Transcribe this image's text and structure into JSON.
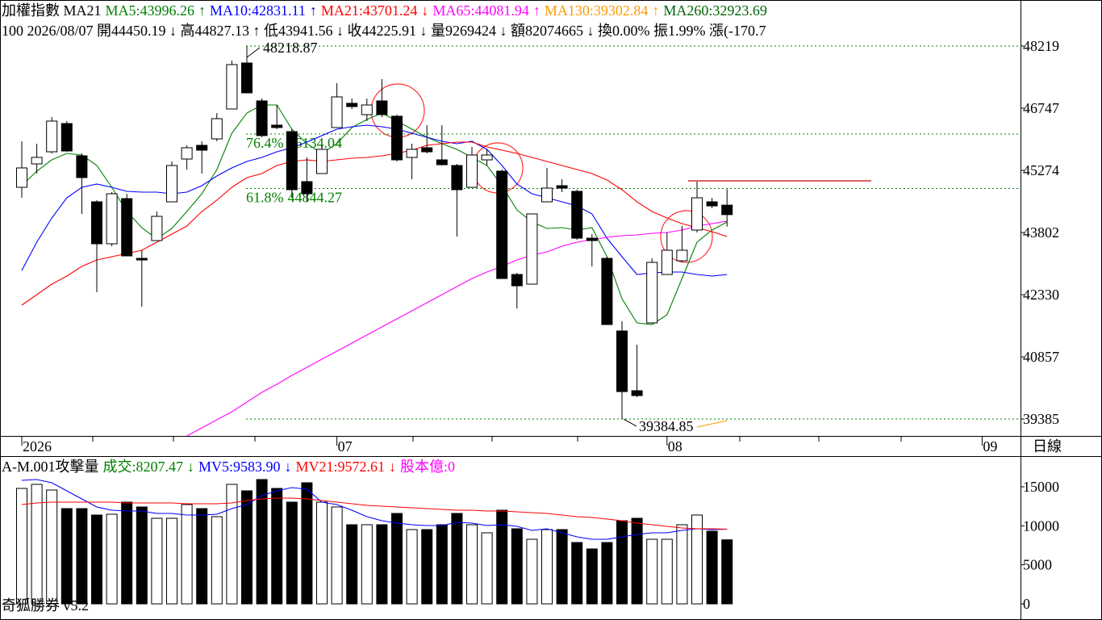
{
  "chart_data": [
    {
      "type": "candlestick",
      "header": [
        [
          {
            "text": "加權指數 MA21",
            "color": "#000000"
          },
          {
            "text": "MA5:43996.26",
            "color": "#008000"
          },
          {
            "text": "↑",
            "color": "#008000"
          },
          {
            "text": "MA10:42831.11",
            "color": "#0000ff"
          },
          {
            "text": "↑",
            "color": "#0000ff"
          },
          {
            "text": "MA21:43701.24",
            "color": "#ff0000"
          },
          {
            "text": "↓",
            "color": "#ff0000"
          },
          {
            "text": "MA65:44081.94",
            "color": "#ff00ff"
          },
          {
            "text": "↑",
            "color": "#ff00ff"
          },
          {
            "text": "MA130:39302.84",
            "color": "#ff9900"
          },
          {
            "text": "↑",
            "color": "#ff9900"
          },
          {
            "text": "MA260:32923.69",
            "color": "#006400"
          }
        ],
        [
          {
            "text": "100 2026/08/07 開44450.19 ↓ 高44827.13 ↑ 低43941.56 ↓ 收44225.91 ↓ 量9269424 ↓ 額82074665 ↓ 換0.00% 振1.99% 漲(-170.7",
            "color": "#000000"
          }
        ]
      ],
      "open": [
        44873,
        45427,
        45714,
        46383,
        45619,
        44529,
        43535,
        44605,
        43190,
        43611,
        44529,
        45542,
        45867,
        46020,
        46728,
        47817,
        46919,
        46345,
        46192,
        45007,
        45198,
        46288,
        46862,
        46594,
        46919,
        46556,
        45580,
        45810,
        45523,
        45389,
        44873,
        45523,
        45255,
        42808,
        42579,
        44529,
        44911,
        44777,
        43668,
        43190,
        41470,
        40055,
        41661,
        42808,
        43133,
        43860,
        44529,
        44450.19
      ],
      "high": [
        45963,
        45906,
        46536,
        46441,
        45676,
        44567,
        44758,
        44720,
        43382,
        44300,
        45485,
        45867,
        45963,
        46632,
        47875,
        48218.87,
        46976,
        46823,
        46250,
        45580,
        45867,
        47339,
        46976,
        46976,
        47435,
        46594,
        45906,
        46345,
        46345,
        45427,
        45829,
        45772,
        45294,
        42846,
        44242,
        45332,
        45064,
        44816,
        43764,
        43229,
        41699,
        41144,
        43190,
        43802,
        43955,
        45007,
        44624,
        44827.13
      ],
      "low": [
        44625,
        45198,
        45676,
        45714,
        44242,
        42387,
        43477,
        43248,
        42043,
        43611,
        44529,
        45294,
        45198,
        45963,
        46728,
        47110,
        46058,
        46250,
        44624,
        44529,
        45198,
        46288,
        46728,
        46441,
        46536,
        45485,
        45064,
        45676,
        45389,
        43707,
        44873,
        45389,
        42712,
        42005,
        42579,
        44529,
        44758,
        43630,
        42999,
        41623,
        39384.85,
        39902,
        41661,
        42808,
        43095,
        43802,
        44376,
        43941.56
      ],
      "close": [
        45332,
        45581,
        46441,
        45733,
        45103,
        43535,
        44720,
        43248,
        43152,
        44185,
        45389,
        45810,
        45752,
        46498,
        47779,
        47110,
        46097,
        46288,
        44816,
        44720,
        45772,
        47014,
        46785,
        46823,
        46594,
        45523,
        45772,
        45714,
        45408,
        44816,
        45638,
        45638,
        42712,
        42540,
        44242,
        44854,
        44854,
        43668,
        43611,
        41623,
        40035,
        39940,
        43095,
        43382,
        43382,
        44624,
        44433,
        44225.91
      ],
      "up_color": "#ffffff",
      "down_color": "#000000",
      "series": [
        {
          "color": "#008000",
          "values": [
            44911,
            45256,
            45523,
            45676,
            45638,
            45389,
            44873,
            44300,
            43917,
            43649,
            43898,
            44300,
            44720,
            45294,
            46154,
            46632,
            46823,
            46823,
            46250,
            45906,
            45676,
            45906,
            46288,
            46479,
            46632,
            46441,
            46250,
            46059,
            45906,
            45772,
            45581,
            45389,
            44911,
            44338,
            44051,
            43898,
            43917,
            43860,
            43917,
            43229,
            42235,
            41661,
            41623,
            41852,
            42713,
            43573,
            43860,
            44051
          ]
        },
        {
          "color": "#0000ff",
          "values": [
            42904,
            43573,
            44147,
            44625,
            44873,
            44950,
            44873,
            44778,
            44758,
            44758,
            44720,
            44758,
            44911,
            45141,
            45332,
            45485,
            45581,
            45714,
            45810,
            45944,
            46097,
            46250,
            46307,
            46345,
            46307,
            46250,
            46154,
            46059,
            45963,
            45906,
            45963,
            45772,
            45389,
            44950,
            44720,
            44625,
            44529,
            44433,
            44242,
            43669,
            43229,
            42808,
            42846,
            42866,
            42866,
            42808,
            42770,
            42808
          ]
        },
        {
          "color": "#ff0000",
          "values": [
            42082,
            42330,
            42579,
            42770,
            42999,
            43152,
            43229,
            43305,
            43382,
            43573,
            43764,
            43955,
            44300,
            44567,
            44873,
            45103,
            45198,
            45389,
            45485,
            45523,
            45485,
            45523,
            45561,
            45581,
            45619,
            45676,
            45753,
            45867,
            45906,
            45944,
            45944,
            45829,
            45753,
            45676,
            45581,
            45485,
            45389,
            45294,
            45198,
            45045,
            44816,
            44529,
            44300,
            44147,
            44013,
            43917,
            43822,
            43707
          ]
        },
        {
          "color": "#ff00ff",
          "values": [
            null,
            null,
            null,
            null,
            null,
            null,
            null,
            null,
            null,
            null,
            null,
            38984,
            39175,
            39367,
            39558,
            39787,
            40017,
            40208,
            40418,
            40609,
            40801,
            40992,
            41183,
            41374,
            41565,
            41757,
            41948,
            42139,
            42330,
            42521,
            42713,
            42866,
            42999,
            43152,
            43267,
            43344,
            43477,
            43573,
            43630,
            43688,
            43726,
            43745,
            43783,
            43802,
            43860,
            43955,
            44013,
            44070
          ]
        },
        {
          "color": "#ff9900",
          "values": [
            null,
            null,
            null,
            null,
            null,
            null,
            null,
            null,
            null,
            null,
            null,
            null,
            null,
            null,
            null,
            null,
            null,
            null,
            null,
            null,
            null,
            null,
            null,
            null,
            null,
            null,
            null,
            null,
            null,
            null,
            null,
            null,
            null,
            null,
            null,
            null,
            null,
            null,
            null,
            null,
            null,
            null,
            null,
            null,
            null,
            39195,
            39271,
            39347
          ]
        }
      ],
      "levels": [
        {
          "label": "76.4%",
          "value": 46134.04
        },
        {
          "label": "61.8%",
          "value": 44844.27
        }
      ],
      "level_color": "#008000",
      "reference_line": {
        "value": 45026,
        "color": "#cc0000"
      },
      "ylim": [
        38984,
        49309
      ],
      "yticks": [
        48219,
        46747,
        45274,
        43802,
        42330,
        40857,
        39385
      ],
      "xticks": [
        {
          "value": 0,
          "label": "2026"
        },
        {
          "value": 21,
          "label": "07"
        },
        {
          "value": 43,
          "label": "08"
        },
        {
          "value": 64,
          "label": "09"
        }
      ],
      "period_label": "日線"
    },
    {
      "type": "bar",
      "header": [
        {
          "text": "A-M.001攻擊量",
          "color": "#000000"
        },
        {
          "text": "成交:8207.47",
          "color": "#008000"
        },
        {
          "text": "↓",
          "color": "#008000"
        },
        {
          "text": "MV5:9583.90",
          "color": "#0000ff"
        },
        {
          "text": "↓",
          "color": "#0000ff"
        },
        {
          "text": "MV21:9572.61",
          "color": "#ff0000"
        },
        {
          "text": "↓",
          "color": "#ff0000"
        },
        {
          "text": "股本億:0",
          "color": "#ff00ff"
        }
      ],
      "values": [
        14793,
        15311,
        14586,
        12207,
        12207,
        11380,
        11483,
        13035,
        12414,
        10966,
        10966,
        12724,
        12207,
        11173,
        15311,
        14483,
        15931,
        14793,
        13035,
        15518,
        13035,
        12414,
        10138,
        10138,
        10138,
        11586,
        9517,
        9517,
        10138,
        11586,
        10138,
        9104,
        12000,
        9621,
        8276,
        9517,
        9517,
        7862,
        7035,
        7862,
        10655,
        10966,
        8276,
        8276,
        10138,
        11380,
        9311,
        8207
      ],
      "series": [
        {
          "color": "#0000ff",
          "values": [
            15828,
            15931,
            15518,
            14483,
            13449,
            12414,
            12000,
            11897,
            11897,
            11586,
            11586,
            11380,
            11380,
            11483,
            12207,
            12724,
            13862,
            14483,
            14897,
            14690,
            13035,
            12724,
            12000,
            11173,
            10655,
            10345,
            10138,
            10035,
            10035,
            10448,
            10345,
            10035,
            10138,
            9931,
            9414,
            9621,
            9104,
            8586,
            8276,
            8276,
            8586,
            8897,
            9104,
            9104,
            9414,
            9621,
            9517,
            9584
          ]
        },
        {
          "color": "#ff0000",
          "values": [
            12724,
            12931,
            13035,
            13035,
            13035,
            13035,
            13035,
            12931,
            12931,
            12931,
            12931,
            12828,
            12828,
            12828,
            12931,
            13242,
            13449,
            13552,
            13552,
            13449,
            13242,
            13035,
            12828,
            12621,
            12517,
            12414,
            12311,
            12207,
            12104,
            12000,
            12000,
            11897,
            11897,
            11793,
            11690,
            11586,
            11380,
            11173,
            11069,
            10862,
            10655,
            10345,
            10138,
            9931,
            9724,
            9621,
            9621,
            9573
          ]
        }
      ],
      "ylim": [
        -2068,
        18827
      ],
      "yticks": [
        0,
        5000,
        10000,
        15000
      ]
    }
  ],
  "app_label": "奇狐勝券 v5.2"
}
